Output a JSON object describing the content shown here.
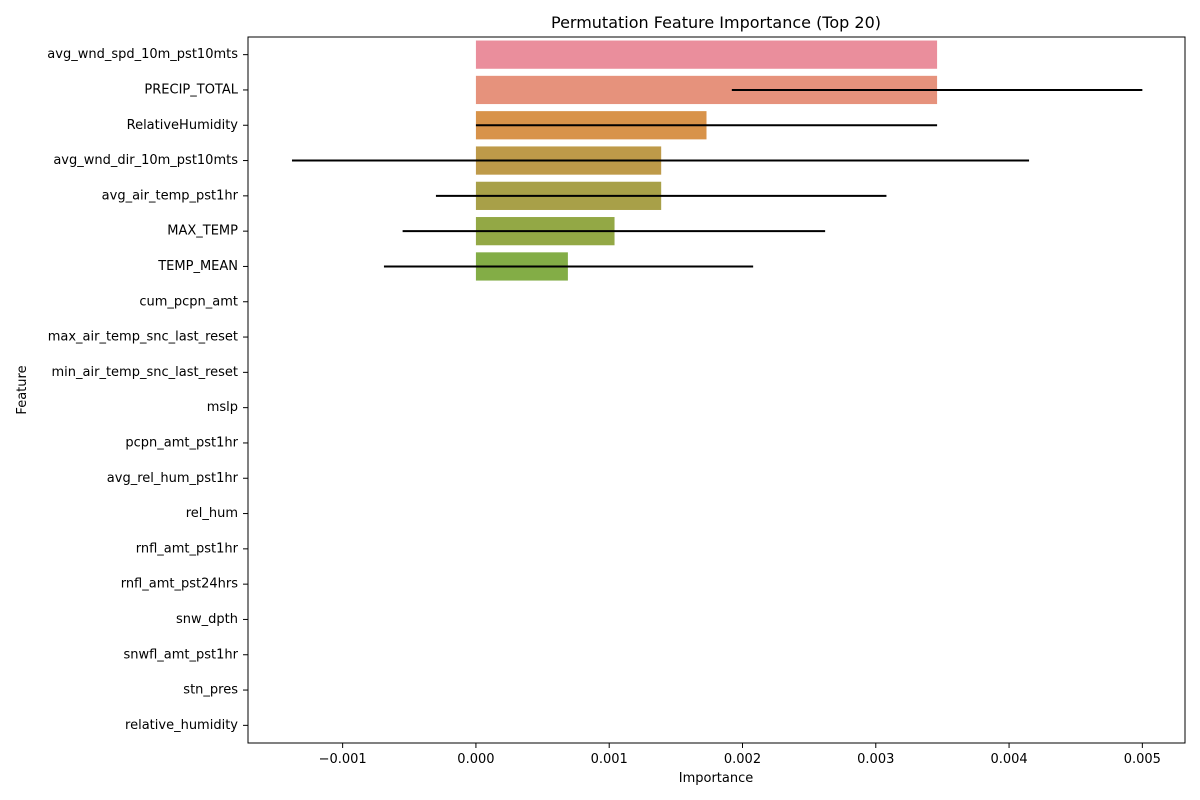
{
  "chart_data": {
    "type": "bar",
    "orientation": "horizontal",
    "title": "Permutation Feature Importance (Top 20)",
    "xlabel": "Importance",
    "ylabel": "Feature",
    "xlim": [
      -0.00171,
      0.00532
    ],
    "xticks": [
      -0.001,
      0.0,
      0.001,
      0.002,
      0.003,
      0.004,
      0.005
    ],
    "xtick_labels": [
      "−0.001",
      "0.000",
      "0.001",
      "0.002",
      "0.003",
      "0.004",
      "0.005"
    ],
    "grid": false,
    "categories": [
      "avg_wnd_spd_10m_pst10mts",
      "PRECIP_TOTAL",
      "RelativeHumidity",
      "avg_wnd_dir_10m_pst10mts",
      "avg_air_temp_pst1hr",
      "MAX_TEMP",
      "TEMP_MEAN",
      "cum_pcpn_amt",
      "max_air_temp_snc_last_reset",
      "min_air_temp_snc_last_reset",
      "mslp",
      "pcpn_amt_pst1hr",
      "avg_rel_hum_pst1hr",
      "rel_hum",
      "rnfl_amt_pst1hr",
      "rnfl_amt_pst24hrs",
      "snw_dpth",
      "snwfl_amt_pst1hr",
      "stn_pres",
      "relative_humidity"
    ],
    "values": [
      0.00346,
      0.00346,
      0.00173,
      0.00139,
      0.00139,
      0.00104,
      0.00069,
      0,
      0,
      0,
      0,
      0,
      0,
      0,
      0,
      0,
      0,
      0,
      0,
      0
    ],
    "error_bars": [
      null,
      [
        0.00192,
        0.005
      ],
      [
        0.0,
        0.00346
      ],
      [
        -0.00138,
        0.00415
      ],
      [
        -0.0003,
        0.00308
      ],
      [
        -0.00055,
        0.00262
      ],
      [
        -0.00069,
        0.00208
      ],
      null,
      null,
      null,
      null,
      null,
      null,
      null,
      null,
      null,
      null,
      null,
      null,
      null
    ],
    "colors": [
      "#ea8e9c",
      "#e6927c",
      "#d8934a",
      "#be9a49",
      "#a8a048",
      "#93a845",
      "#83ad46"
    ],
    "error_bar_color": "#000000"
  }
}
